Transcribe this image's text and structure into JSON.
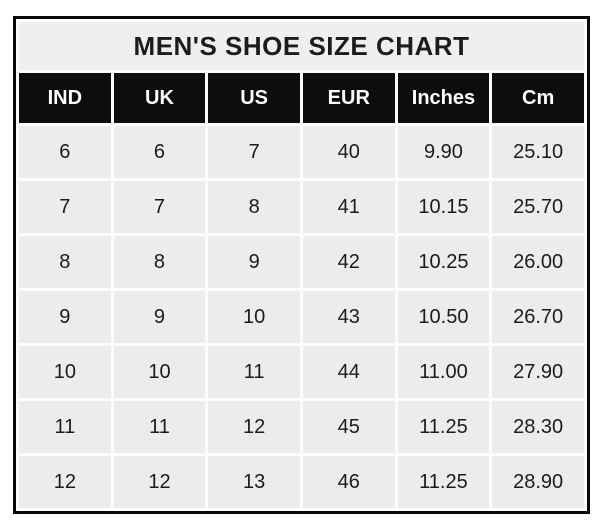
{
  "chart_data": {
    "type": "table",
    "title": "MEN'S SHOE SIZE CHART",
    "columns": [
      "IND",
      "UK",
      "US",
      "EUR",
      "Inches",
      "Cm"
    ],
    "rows": [
      [
        "6",
        "6",
        "7",
        "40",
        "9.90",
        "25.10"
      ],
      [
        "7",
        "7",
        "8",
        "41",
        "10.15",
        "25.70"
      ],
      [
        "8",
        "8",
        "9",
        "42",
        "10.25",
        "26.00"
      ],
      [
        "9",
        "9",
        "10",
        "43",
        "10.50",
        "26.70"
      ],
      [
        "10",
        "10",
        "11",
        "44",
        "11.00",
        "27.90"
      ],
      [
        "11",
        "11",
        "12",
        "45",
        "11.25",
        "28.30"
      ],
      [
        "12",
        "12",
        "13",
        "46",
        "11.25",
        "28.90"
      ]
    ]
  },
  "colors": {
    "page_bg": "#ffffff",
    "table_border": "#0a0a0a",
    "grid_gap": "#fcfcfc",
    "title_bg": "#f0efee",
    "header_bg": "#0d0d0d",
    "header_text": "#fcfcfc",
    "cell_bg": "#edecec",
    "text": "#1c1c1c"
  }
}
